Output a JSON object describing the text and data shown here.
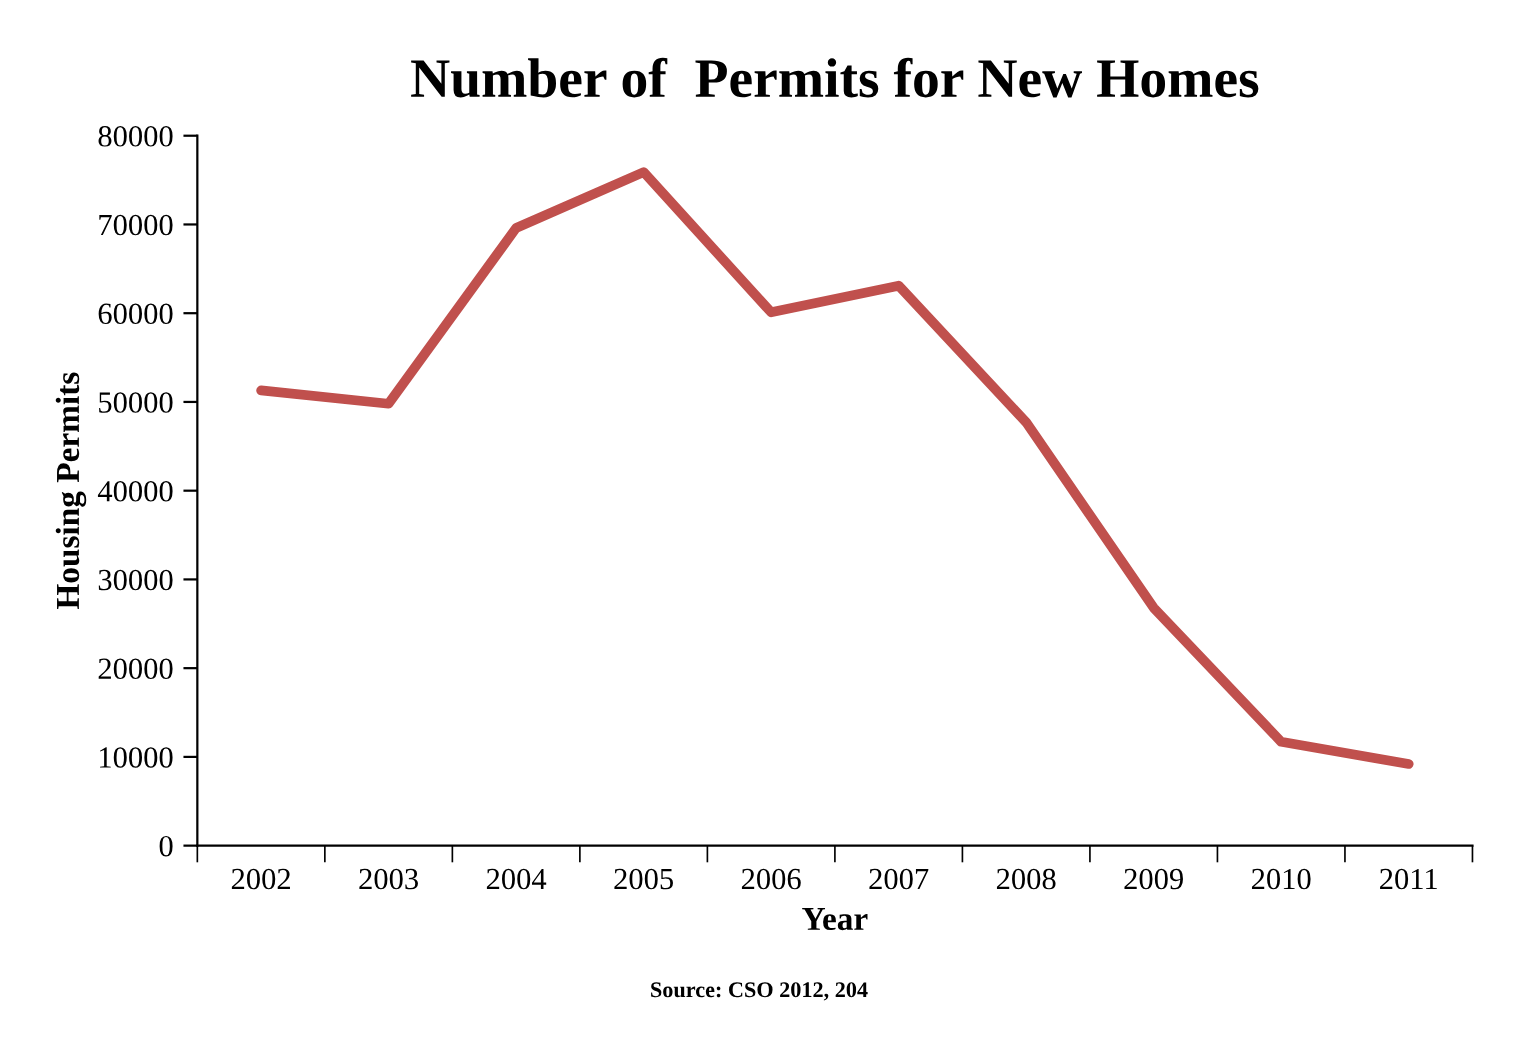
{
  "chart_data": {
    "type": "line",
    "title": "Number of  Permits for New Homes",
    "xlabel": "Year",
    "ylabel": "Housing Permits",
    "categories": [
      "2002",
      "2003",
      "2004",
      "2005",
      "2006",
      "2007",
      "2008",
      "2009",
      "2010",
      "2011"
    ],
    "series": [
      {
        "color": "#c0504d",
        "values": [
          51300,
          49800,
          69600,
          75900,
          60100,
          63100,
          47700,
          26800,
          11700,
          9200
        ]
      }
    ],
    "ylim": [
      0,
      80000
    ],
    "yticks": [
      0,
      10000,
      20000,
      30000,
      40000,
      50000,
      60000,
      70000,
      80000
    ],
    "grid": false,
    "legend": false,
    "marker": "none",
    "line_style": "solid",
    "annotations": [
      "Source: CSO 2012, 204"
    ]
  }
}
